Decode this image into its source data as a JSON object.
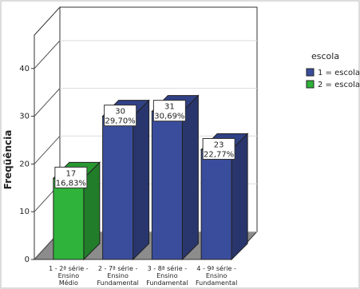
{
  "chart_data": {
    "type": "bar3d",
    "y_label": "Freqüência",
    "legend_title": "escola",
    "categories": [
      "1 - 2ª série - Ensino Médio",
      "2 - 7ª série - Ensino Fundamental",
      "3 - 8ª série - Ensino Fundamental",
      "4 - 9ª série - Ensino Fundamental"
    ],
    "series": [
      {
        "name": "1 = escola",
        "color": "#3a4d9c",
        "values": [
          null,
          30,
          31,
          23
        ],
        "percent_labels": [
          null,
          "29,70%",
          "30,69%",
          "22,77%"
        ]
      },
      {
        "name": "2 = escola",
        "color": "#2fb33a",
        "values": [
          17,
          null,
          null,
          null
        ],
        "percent_labels": [
          "16,83%",
          null,
          null,
          null
        ]
      }
    ],
    "ylim": [
      0,
      47
    ],
    "yticks": [
      0,
      10,
      20,
      30,
      40
    ],
    "legend_position": "right"
  }
}
